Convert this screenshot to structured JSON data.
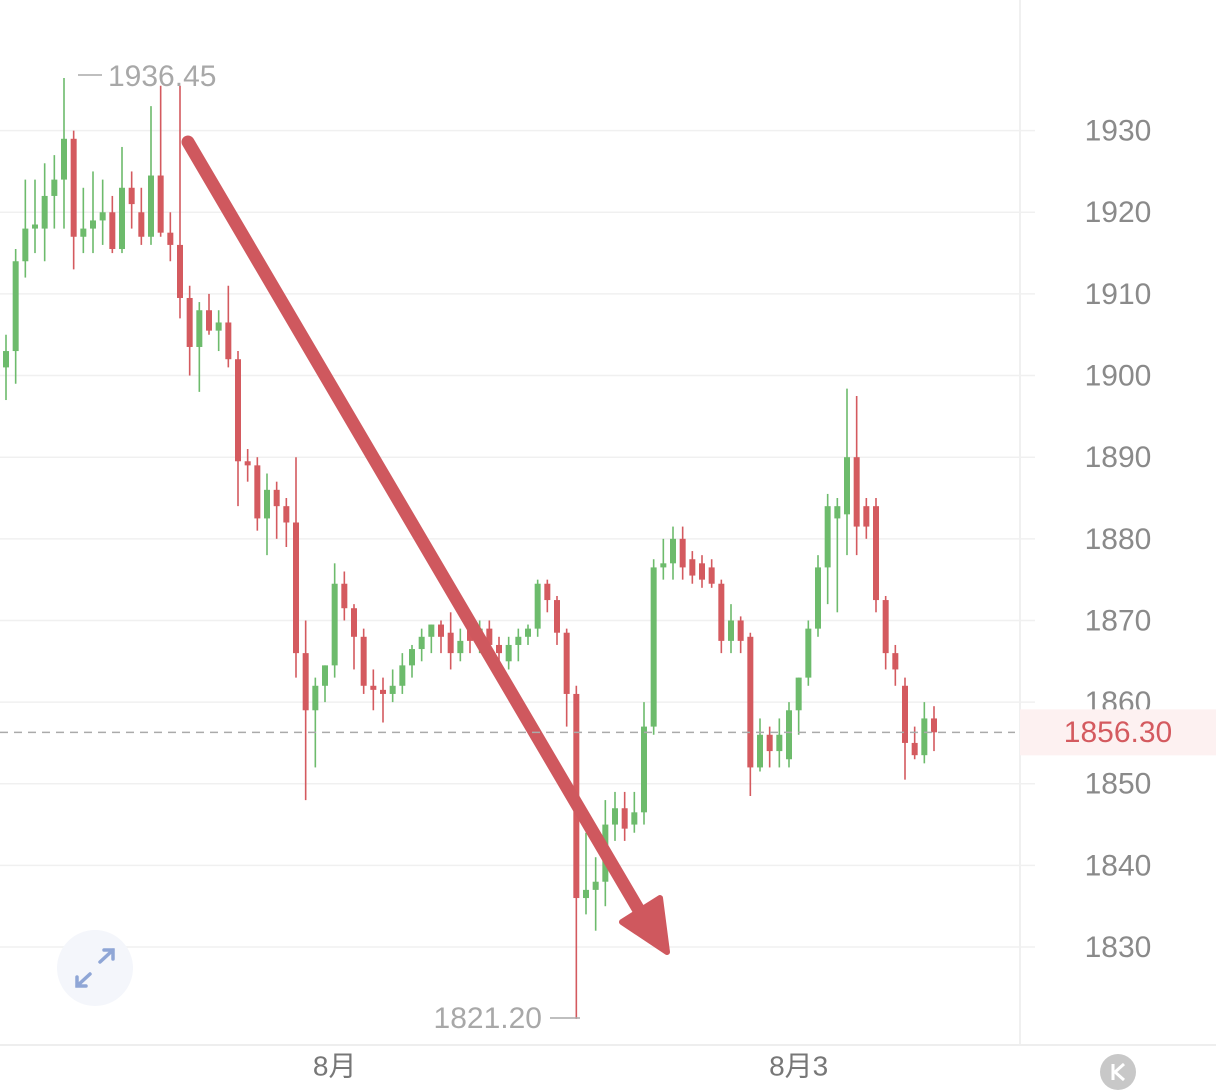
{
  "chart_data": {
    "type": "candlestick",
    "categories": [
      null,
      null,
      null,
      null,
      null,
      null,
      null,
      null,
      null,
      null,
      null,
      null,
      null,
      null,
      null,
      null,
      null,
      null,
      null,
      null,
      null,
      null,
      null,
      null,
      null,
      null,
      null,
      null,
      null,
      null,
      null,
      null,
      null,
      null,
      "8月",
      null,
      null,
      null,
      null,
      null,
      null,
      null,
      null,
      null,
      null,
      null,
      null,
      null,
      null,
      null,
      null,
      null,
      null,
      null,
      null,
      null,
      null,
      null,
      null,
      null,
      null,
      null,
      null,
      null,
      null,
      null,
      null,
      null,
      null,
      null,
      null,
      null,
      null,
      null,
      null,
      null,
      null,
      null,
      null,
      null,
      null,
      null,
      "8月3",
      null,
      null,
      null,
      null,
      null,
      null,
      null,
      null,
      null,
      null,
      null,
      null,
      null,
      null
    ],
    "open": [
      1901,
      1903,
      1914,
      1918,
      1918,
      1922,
      1924,
      1929,
      1917,
      1918,
      1919,
      1920,
      1915.5,
      1923,
      1920,
      1917,
      1924.5,
      1917.5,
      1916,
      1909.5,
      1903.5,
      1908,
      1905.5,
      1906.5,
      1902,
      1889.5,
      1889,
      1882.5,
      1886,
      1884,
      1882,
      1866,
      1859,
      1862,
      1864.5,
      1874.5,
      1871.5,
      1868,
      1862,
      1861.5,
      1861,
      1862,
      1864.5,
      1866.5,
      1868,
      1869.5,
      1868.5,
      1866,
      1869,
      1868,
      1869,
      1867,
      1865,
      1867,
      1868,
      1869,
      1874.5,
      1872.5,
      1868.5,
      1861,
      1836,
      1837,
      1838,
      1845,
      1847,
      1845,
      1846.5,
      1857,
      1876.5,
      1877,
      1880,
      1877.5,
      1877,
      1876.5,
      1874.5,
      1867.5,
      1870,
      1868,
      1852,
      1856,
      1854,
      1853,
      1859,
      1863,
      1869,
      1876.5,
      1882.5,
      1883,
      1890,
      1884,
      1884,
      1872.5,
      1866,
      1862,
      1855,
      1853.5,
      1858
    ],
    "high": [
      1905,
      1915.5,
      1924,
      1924,
      1926,
      1927,
      1936.45,
      1930,
      1923,
      1925,
      1924,
      1922,
      1928,
      1925,
      1923,
      1933,
      1935.5,
      1920,
      1935.5,
      1911,
      1909,
      1910,
      1908,
      1911,
      1903,
      1891,
      1890,
      1888,
      1887,
      1885,
      1890,
      1870,
      1863,
      1864.5,
      1877,
      1876,
      1872,
      1869,
      1864,
      1863,
      1864,
      1866,
      1867,
      1869,
      1869.5,
      1870,
      1871,
      1869,
      1870,
      1870,
      1870,
      1868,
      1868,
      1869,
      1869.5,
      1875,
      1875,
      1873,
      1869,
      1862,
      1844,
      1841,
      1848,
      1849,
      1849,
      1849,
      1860,
      1877.5,
      1880,
      1881.5,
      1881.5,
      1878.5,
      1878,
      1877.5,
      1875,
      1872,
      1870.5,
      1868.5,
      1858,
      1857,
      1858,
      1860,
      1863,
      1870,
      1878,
      1885.5,
      1885,
      1898.4,
      1897.5,
      1885,
      1885,
      1873,
      1867,
      1863,
      1857,
      1860,
      1859.5
    ],
    "low": [
      1897,
      1899,
      1912,
      1915,
      1914,
      1918,
      1918,
      1913,
      1915,
      1915,
      1916,
      1915,
      1915,
      1918,
      1916,
      1916,
      1917,
      1914,
      1907,
      1900,
      1898,
      1905,
      1903,
      1901,
      1884,
      1887,
      1881,
      1878,
      1880,
      1879,
      1863,
      1848,
      1852,
      1860,
      1863,
      1870,
      1864,
      1861,
      1859,
      1857.5,
      1860,
      1861,
      1863,
      1865,
      1866,
      1866,
      1864,
      1865,
      1866,
      1866,
      1866,
      1863,
      1864,
      1865,
      1867,
      1868,
      1871,
      1867,
      1857,
      1821.2,
      1834,
      1832,
      1835,
      1843,
      1843,
      1844,
      1845,
      1856,
      1875,
      1875,
      1875,
      1874.5,
      1874,
      1874,
      1866,
      1866,
      1866,
      1848.5,
      1851.5,
      1852,
      1852,
      1852,
      1856,
      1862,
      1868,
      1872,
      1871,
      1878,
      1878,
      1880,
      1871,
      1864,
      1862,
      1850.5,
      1853,
      1852.5,
      1854
    ],
    "close": [
      1903,
      1914,
      1918,
      1918.5,
      1922,
      1924,
      1929,
      1917,
      1918,
      1919,
      1920,
      1915.5,
      1923,
      1921,
      1917,
      1924.5,
      1917.5,
      1916,
      1909.5,
      1903.5,
      1908,
      1905.5,
      1906.5,
      1902,
      1889.5,
      1889,
      1882.5,
      1886,
      1884,
      1882,
      1866,
      1859,
      1862,
      1864.5,
      1874.5,
      1871.5,
      1868,
      1862,
      1861.5,
      1861,
      1862,
      1864.5,
      1866.5,
      1868,
      1869.5,
      1868,
      1866,
      1867.5,
      1867.5,
      1869,
      1867,
      1866,
      1867,
      1868,
      1869,
      1874.5,
      1872.5,
      1868.5,
      1861,
      1836,
      1837,
      1838,
      1845,
      1847,
      1844.5,
      1846.5,
      1857,
      1876.5,
      1877,
      1880,
      1876.5,
      1875.5,
      1875,
      1874.5,
      1867.5,
      1870,
      1867.5,
      1852,
      1856,
      1854,
      1856,
      1859,
      1863,
      1869,
      1876.5,
      1884,
      1884,
      1890,
      1881.5,
      1881.5,
      1872.5,
      1866,
      1864,
      1855,
      1853.5,
      1858,
      1856.3
    ],
    "up_color": "#6dbb6c",
    "down_color": "#d45a5f",
    "ylim": [
      1818,
      1946
    ],
    "yticks": [
      1830,
      1840,
      1850,
      1860,
      1870,
      1880,
      1890,
      1900,
      1910,
      1920,
      1930
    ],
    "grid": true,
    "max_label": "1936.45",
    "min_label": "1821.20",
    "last_price": {
      "value": 1856.3,
      "label": "1856.30"
    }
  }
}
